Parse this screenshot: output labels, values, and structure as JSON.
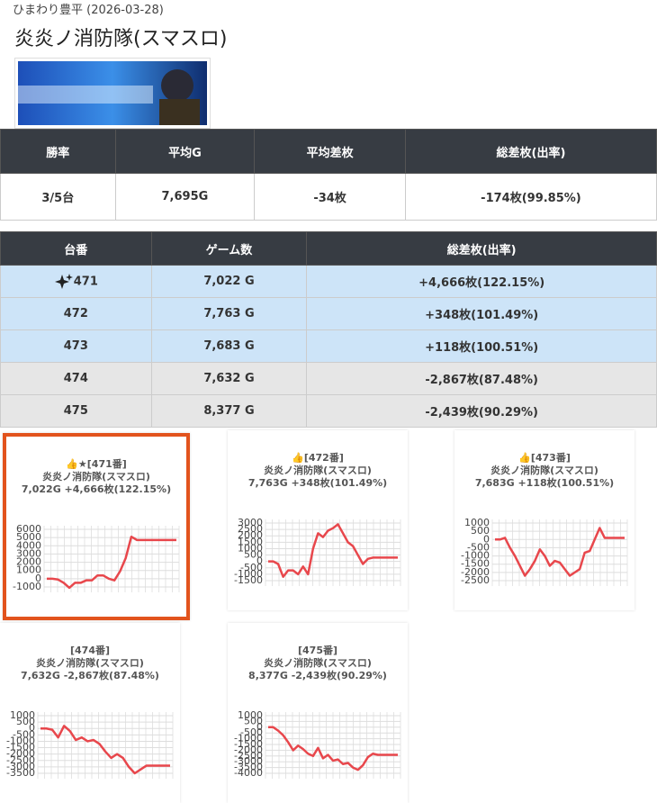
{
  "header": {
    "subtitle": "ひまわり豊平 (2026-03-28)",
    "title": "炎炎ノ消防隊(スマスロ)"
  },
  "summary": {
    "columns": [
      "勝率",
      "平均G",
      "平均差枚",
      "総差枚(出率)"
    ],
    "rows": [
      [
        "3/5台",
        "7,695G",
        "-34枚",
        "-174枚(99.85%)"
      ]
    ]
  },
  "machines": {
    "columns": [
      "台番",
      "ゲーム数",
      "総差枚(出率)"
    ],
    "rows": [
      [
        "471",
        "7,022 G",
        "+4,666枚(122.15%)"
      ],
      [
        "472",
        "7,763 G",
        "+348枚(101.49%)"
      ],
      [
        "473",
        "7,683 G",
        "+118枚(100.51%)"
      ],
      [
        "474",
        "7,632 G",
        "-2,867枚(87.48%)"
      ],
      [
        "475",
        "8,377 G",
        "-2,439枚(90.29%)"
      ]
    ]
  },
  "charts": [
    {
      "type": "line",
      "title": "👍★[471番]",
      "name": "炎炎ノ消防隊(スマスロ)",
      "stats": "7,022G +4,666枚(122.15%)",
      "color": "#e8474c",
      "ylim": [
        -1000,
        6000
      ],
      "yticks": [
        6000,
        5000,
        4000,
        3000,
        2000,
        1000,
        0,
        -1000
      ],
      "values": [
        0,
        0,
        -100,
        -500,
        -1100,
        -500,
        -500,
        -200,
        -200,
        400,
        400,
        0,
        -200,
        900,
        2500,
        5100,
        4700,
        4700,
        4700,
        4700,
        4700,
        4700,
        4700,
        4700
      ]
    },
    {
      "type": "line",
      "title": "👍[472番]",
      "name": "炎炎ノ消防隊(スマスロ)",
      "stats": "7,763G +348枚(101.49%)",
      "color": "#e8474c",
      "ylim": [
        -1500,
        3000
      ],
      "yticks": [
        3000,
        2500,
        2000,
        1500,
        1000,
        500,
        0,
        -500,
        -1000,
        -1500
      ],
      "values": [
        0,
        0,
        -200,
        -1200,
        -700,
        -700,
        -1000,
        -400,
        -1000,
        1000,
        2200,
        1900,
        2400,
        2600,
        2900,
        2200,
        1500,
        1200,
        500,
        -200,
        200,
        300,
        300,
        300,
        300,
        300,
        300
      ]
    },
    {
      "type": "line",
      "title": "👍[473番]",
      "name": "炎炎ノ消防隊(スマスロ)",
      "stats": "7,683G +118枚(100.51%)",
      "color": "#e8474c",
      "ylim": [
        -2500,
        1000
      ],
      "yticks": [
        1000,
        500,
        0,
        -500,
        -1000,
        -1500,
        -2000,
        -2500
      ],
      "values": [
        0,
        0,
        100,
        -500,
        -1000,
        -1600,
        -2200,
        -1800,
        -1300,
        -600,
        -1000,
        -1600,
        -1300,
        -1400,
        -1800,
        -2200,
        -2000,
        -1800,
        -800,
        -700,
        0,
        700,
        100,
        100,
        100,
        100,
        100
      ]
    },
    {
      "type": "line",
      "title": "[474番]",
      "name": "炎炎ノ消防隊(スマスロ)",
      "stats": "7,632G -2,867枚(87.48%)",
      "color": "#e8474c",
      "ylim": [
        -3500,
        1000
      ],
      "yticks": [
        1000,
        500,
        0,
        -500,
        -1000,
        -1500,
        -2000,
        -2500,
        -3000,
        -3500
      ],
      "values": [
        0,
        0,
        -100,
        -700,
        200,
        -200,
        -900,
        -700,
        -1000,
        -900,
        -1200,
        -1800,
        -2300,
        -2000,
        -2300,
        -3000,
        -3500,
        -3200,
        -2900,
        -2900,
        -2900,
        -2900,
        -2900
      ]
    },
    {
      "type": "line",
      "title": "[475番]",
      "name": "炎炎ノ消防隊(スマスロ)",
      "stats": "8,377G -2,439枚(90.29%)",
      "color": "#e8474c",
      "ylim": [
        -4000,
        1000
      ],
      "yticks": [
        1000,
        500,
        0,
        -500,
        -1000,
        -1500,
        -2000,
        -2500,
        -3000,
        -3500,
        -4000
      ],
      "values": [
        0,
        0,
        -300,
        -700,
        -1300,
        -2000,
        -1600,
        -1900,
        -2300,
        -2500,
        -1800,
        -2700,
        -2400,
        -2900,
        -2800,
        -3200,
        -3100,
        -3500,
        -3700,
        -3300,
        -2600,
        -2300,
        -2400,
        -2400,
        -2400,
        -2400,
        -2400
      ]
    }
  ]
}
